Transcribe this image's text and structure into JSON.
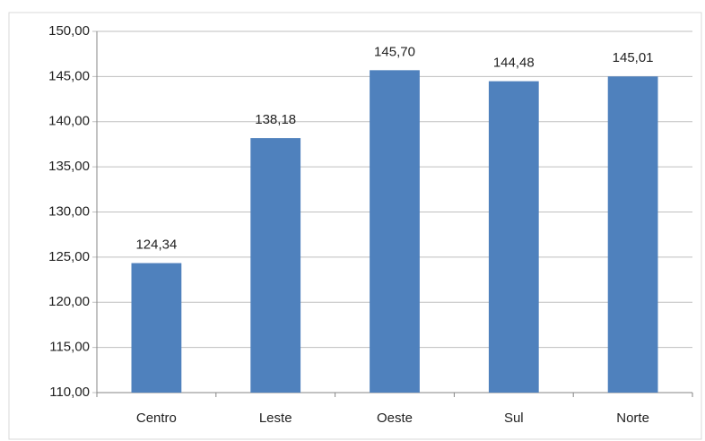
{
  "chart_data": {
    "type": "bar",
    "categories": [
      "Centro",
      "Leste",
      "Oeste",
      "Sul",
      "Norte"
    ],
    "values": [
      124.34,
      138.18,
      145.7,
      144.48,
      145.01
    ],
    "value_labels": [
      "124,34",
      "138,18",
      "145,70",
      "144,48",
      "145,01"
    ],
    "color": "#4f81bd",
    "ylim": [
      110,
      150
    ],
    "yticks": [
      {
        "value": 110,
        "label": "110,00"
      },
      {
        "value": 115,
        "label": "115,00"
      },
      {
        "value": 120,
        "label": "120,00"
      },
      {
        "value": 125,
        "label": "125,00"
      },
      {
        "value": 130,
        "label": "130,00"
      },
      {
        "value": 135,
        "label": "135,00"
      },
      {
        "value": 140,
        "label": "140,00"
      },
      {
        "value": 145,
        "label": "145,00"
      },
      {
        "value": 150,
        "label": "150,00"
      }
    ],
    "grid": true
  }
}
